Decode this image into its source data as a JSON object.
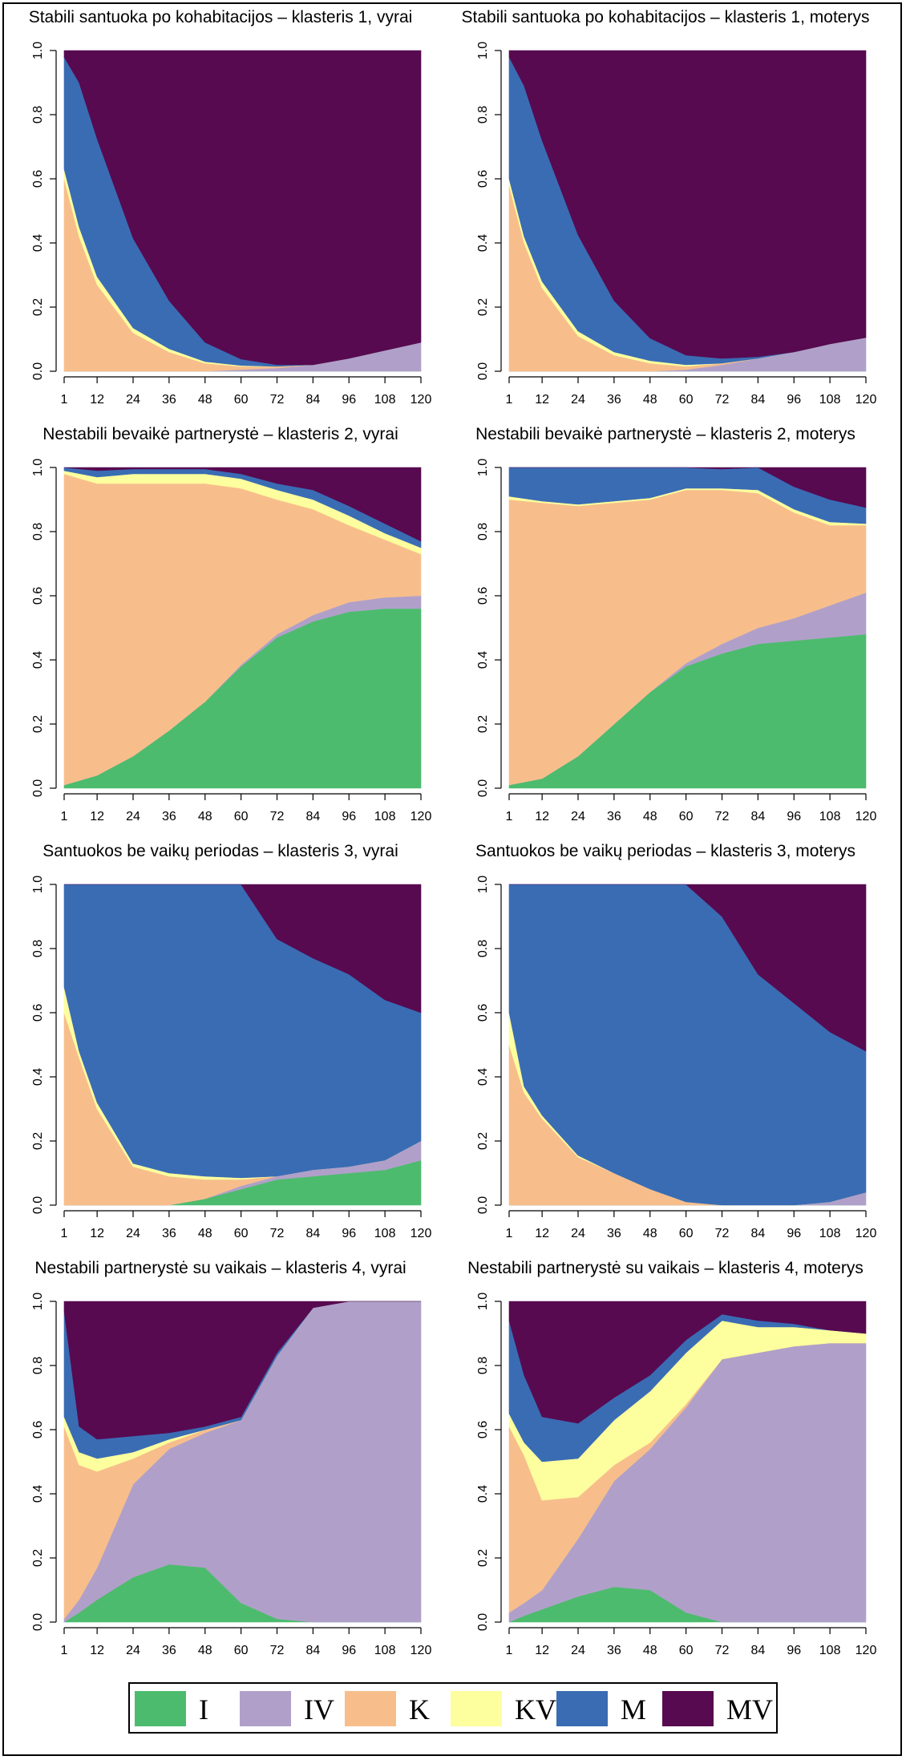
{
  "legend": [
    {
      "key": "I",
      "label": "I",
      "color": "#4dbb6e"
    },
    {
      "key": "IV",
      "label": "IV",
      "color": "#b0a0c9"
    },
    {
      "key": "K",
      "label": "K",
      "color": "#f7be8c"
    },
    {
      "key": "KV",
      "label": "KV",
      "color": "#fdfe9e"
    },
    {
      "key": "M",
      "label": "M",
      "color": "#3a6cb4"
    },
    {
      "key": "MV",
      "label": "MV",
      "color": "#570a50"
    }
  ],
  "chart_data": [
    {
      "type": "area",
      "title": "Stabili santuoka po kohabitacijos – klasteris 1, vyrai",
      "x": [
        1,
        6,
        12,
        24,
        36,
        48,
        60,
        72,
        84,
        96,
        108,
        120
      ],
      "xticks": [
        "1",
        "12",
        "24",
        "36",
        "48",
        "60",
        "72",
        "84",
        "96",
        "108",
        "120"
      ],
      "yticks": [
        "0.0",
        "0.2",
        "0.4",
        "0.6",
        "0.8",
        "1.0"
      ],
      "ylim": [
        0,
        1
      ],
      "stacked": true,
      "series": [
        {
          "name": "I",
          "values": [
            0,
            0,
            0,
            0,
            0,
            0,
            0,
            0,
            0,
            0,
            0,
            0
          ]
        },
        {
          "name": "IV",
          "values": [
            0,
            0,
            0,
            0,
            0,
            0,
            0.005,
            0.01,
            0.02,
            0.04,
            0.065,
            0.09
          ]
        },
        {
          "name": "K",
          "values": [
            0.6,
            0.42,
            0.27,
            0.12,
            0.06,
            0.025,
            0.01,
            0.005,
            0,
            0,
            0,
            0
          ]
        },
        {
          "name": "KV",
          "values": [
            0.03,
            0.03,
            0.025,
            0.015,
            0.01,
            0.005,
            0.003,
            0,
            0,
            0,
            0,
            0
          ]
        },
        {
          "name": "M",
          "values": [
            0.35,
            0.45,
            0.43,
            0.28,
            0.15,
            0.06,
            0.02,
            0.005,
            0,
            0,
            0,
            0
          ]
        },
        {
          "name": "MV",
          "values": [
            0.02,
            0.1,
            0.275,
            0.585,
            0.78,
            0.91,
            0.962,
            0.98,
            0.98,
            0.96,
            0.935,
            0.91
          ]
        }
      ]
    },
    {
      "type": "area",
      "title": "Stabili santuoka po kohabitacijos – klasteris 1, moterys",
      "x": [
        1,
        6,
        12,
        24,
        36,
        48,
        60,
        72,
        84,
        96,
        108,
        120
      ],
      "xticks": [
        "1",
        "12",
        "24",
        "36",
        "48",
        "60",
        "72",
        "84",
        "96",
        "108",
        "120"
      ],
      "yticks": [
        "0.0",
        "0.2",
        "0.4",
        "0.6",
        "0.8",
        "1.0"
      ],
      "ylim": [
        0,
        1
      ],
      "stacked": true,
      "series": [
        {
          "name": "I",
          "values": [
            0,
            0,
            0,
            0,
            0,
            0,
            0,
            0,
            0,
            0,
            0,
            0
          ]
        },
        {
          "name": "IV",
          "values": [
            0,
            0,
            0,
            0,
            0,
            0,
            0.005,
            0.02,
            0.04,
            0.06,
            0.085,
            0.105
          ]
        },
        {
          "name": "K",
          "values": [
            0.58,
            0.4,
            0.26,
            0.11,
            0.05,
            0.025,
            0.01,
            0.005,
            0,
            0,
            0,
            0
          ]
        },
        {
          "name": "KV",
          "values": [
            0.02,
            0.02,
            0.02,
            0.015,
            0.01,
            0.008,
            0.005,
            0,
            0,
            0,
            0,
            0
          ]
        },
        {
          "name": "M",
          "values": [
            0.38,
            0.47,
            0.44,
            0.3,
            0.16,
            0.07,
            0.03,
            0.015,
            0.005,
            0,
            0,
            0
          ]
        },
        {
          "name": "MV",
          "values": [
            0.02,
            0.11,
            0.28,
            0.575,
            0.78,
            0.897,
            0.95,
            0.96,
            0.955,
            0.94,
            0.915,
            0.895
          ]
        }
      ]
    },
    {
      "type": "area",
      "title": "Nestabili bevaikė partnerystė – klasteris 2, vyrai",
      "x": [
        1,
        12,
        24,
        36,
        48,
        60,
        72,
        84,
        96,
        108,
        120
      ],
      "xticks": [
        "1",
        "12",
        "24",
        "36",
        "48",
        "60",
        "72",
        "84",
        "96",
        "108",
        "120"
      ],
      "yticks": [
        "0.0",
        "0.2",
        "0.4",
        "0.6",
        "0.8",
        "1.0"
      ],
      "ylim": [
        0,
        1
      ],
      "stacked": true,
      "series": [
        {
          "name": "I",
          "values": [
            0.01,
            0.04,
            0.1,
            0.18,
            0.27,
            0.38,
            0.47,
            0.52,
            0.55,
            0.56,
            0.56
          ]
        },
        {
          "name": "IV",
          "values": [
            0,
            0,
            0,
            0,
            0,
            0.005,
            0.01,
            0.02,
            0.03,
            0.035,
            0.04
          ]
        },
        {
          "name": "K",
          "values": [
            0.97,
            0.91,
            0.85,
            0.77,
            0.68,
            0.55,
            0.42,
            0.33,
            0.24,
            0.18,
            0.13
          ]
        },
        {
          "name": "KV",
          "values": [
            0.01,
            0.02,
            0.03,
            0.03,
            0.03,
            0.03,
            0.03,
            0.03,
            0.03,
            0.02,
            0.02
          ]
        },
        {
          "name": "M",
          "values": [
            0.01,
            0.02,
            0.015,
            0.015,
            0.015,
            0.015,
            0.02,
            0.03,
            0.03,
            0.03,
            0.02
          ]
        },
        {
          "name": "MV",
          "values": [
            0,
            0.01,
            0.005,
            0.005,
            0.005,
            0.02,
            0.05,
            0.07,
            0.12,
            0.175,
            0.23
          ]
        }
      ]
    },
    {
      "type": "area",
      "title": "Nestabili bevaikė partnerystė – klasteris 2, moterys",
      "x": [
        1,
        12,
        24,
        36,
        48,
        60,
        72,
        84,
        96,
        108,
        120
      ],
      "xticks": [
        "1",
        "12",
        "24",
        "36",
        "48",
        "60",
        "72",
        "84",
        "96",
        "108",
        "120"
      ],
      "yticks": [
        "0.0",
        "0.2",
        "0.4",
        "0.6",
        "0.8",
        "1.0"
      ],
      "ylim": [
        0,
        1
      ],
      "stacked": true,
      "series": [
        {
          "name": "I",
          "values": [
            0.01,
            0.03,
            0.1,
            0.2,
            0.3,
            0.38,
            0.42,
            0.45,
            0.46,
            0.47,
            0.48
          ]
        },
        {
          "name": "IV",
          "values": [
            0,
            0,
            0,
            0,
            0,
            0.01,
            0.03,
            0.05,
            0.07,
            0.1,
            0.13
          ]
        },
        {
          "name": "K",
          "values": [
            0.89,
            0.86,
            0.78,
            0.69,
            0.6,
            0.54,
            0.48,
            0.42,
            0.33,
            0.25,
            0.21
          ]
        },
        {
          "name": "KV",
          "values": [
            0.01,
            0.005,
            0.005,
            0.005,
            0.005,
            0.005,
            0.005,
            0.01,
            0.01,
            0.01,
            0.005
          ]
        },
        {
          "name": "M",
          "values": [
            0.09,
            0.105,
            0.115,
            0.105,
            0.095,
            0.065,
            0.06,
            0.07,
            0.07,
            0.07,
            0.05
          ]
        },
        {
          "name": "MV",
          "values": [
            0,
            0,
            0,
            0,
            0,
            0,
            0.005,
            0,
            0.06,
            0.1,
            0.125
          ]
        }
      ]
    },
    {
      "type": "area",
      "title": "Santuokos be vaikų periodas – klasteris 3, vyrai",
      "x": [
        1,
        6,
        12,
        24,
        36,
        48,
        60,
        72,
        84,
        96,
        108,
        120
      ],
      "xticks": [
        "1",
        "12",
        "24",
        "36",
        "48",
        "60",
        "72",
        "84",
        "96",
        "108",
        "120"
      ],
      "yticks": [
        "0.0",
        "0.2",
        "0.4",
        "0.6",
        "0.8",
        "1.0"
      ],
      "ylim": [
        0,
        1
      ],
      "stacked": true,
      "series": [
        {
          "name": "I",
          "values": [
            0,
            0,
            0,
            0,
            0,
            0.02,
            0.05,
            0.08,
            0.09,
            0.1,
            0.11,
            0.14
          ]
        },
        {
          "name": "IV",
          "values": [
            0,
            0,
            0,
            0,
            0,
            0,
            0.01,
            0.01,
            0.02,
            0.02,
            0.03,
            0.06
          ]
        },
        {
          "name": "K",
          "values": [
            0.6,
            0.46,
            0.3,
            0.12,
            0.09,
            0.06,
            0.02,
            0,
            0,
            0,
            0,
            0
          ]
        },
        {
          "name": "KV",
          "values": [
            0.08,
            0.02,
            0.02,
            0.01,
            0.01,
            0.01,
            0.005,
            0,
            0,
            0,
            0,
            0
          ]
        },
        {
          "name": "M",
          "values": [
            0.32,
            0.52,
            0.68,
            0.87,
            0.9,
            0.91,
            0.915,
            0.74,
            0.66,
            0.6,
            0.5,
            0.4
          ]
        },
        {
          "name": "MV",
          "values": [
            0,
            0,
            0,
            0,
            0,
            0,
            0,
            0.17,
            0.23,
            0.28,
            0.36,
            0.4
          ]
        }
      ]
    },
    {
      "type": "area",
      "title": "Santuokos be vaikų periodas – klasteris 3, moterys",
      "x": [
        1,
        6,
        12,
        24,
        36,
        48,
        60,
        72,
        84,
        96,
        108,
        120
      ],
      "xticks": [
        "1",
        "12",
        "24",
        "36",
        "48",
        "60",
        "72",
        "84",
        "96",
        "108",
        "120"
      ],
      "yticks": [
        "0.0",
        "0.2",
        "0.4",
        "0.6",
        "0.8",
        "1.0"
      ],
      "ylim": [
        0,
        1
      ],
      "stacked": true,
      "series": [
        {
          "name": "I",
          "values": [
            0,
            0,
            0,
            0,
            0,
            0,
            0,
            0,
            0,
            0,
            0,
            0
          ]
        },
        {
          "name": "IV",
          "values": [
            0,
            0,
            0,
            0,
            0,
            0,
            0,
            0,
            0,
            0,
            0.01,
            0.04
          ]
        },
        {
          "name": "K",
          "values": [
            0.5,
            0.35,
            0.27,
            0.15,
            0.1,
            0.05,
            0.01,
            0,
            0,
            0,
            0,
            0
          ]
        },
        {
          "name": "KV",
          "values": [
            0.1,
            0.02,
            0.01,
            0.005,
            0,
            0,
            0,
            0,
            0,
            0,
            0,
            0
          ]
        },
        {
          "name": "M",
          "values": [
            0.4,
            0.63,
            0.72,
            0.845,
            0.9,
            0.95,
            0.99,
            0.9,
            0.72,
            0.63,
            0.53,
            0.44
          ]
        },
        {
          "name": "MV",
          "values": [
            0,
            0,
            0,
            0,
            0,
            0,
            0,
            0.1,
            0.28,
            0.37,
            0.46,
            0.52
          ]
        }
      ]
    },
    {
      "type": "area",
      "title": "Nestabili partnerystė su vaikais – klasteris 4, vyrai",
      "x": [
        1,
        6,
        12,
        24,
        36,
        48,
        60,
        72,
        84,
        96,
        108,
        120
      ],
      "xticks": [
        "1",
        "12",
        "24",
        "36",
        "48",
        "60",
        "72",
        "84",
        "96",
        "108",
        "120"
      ],
      "yticks": [
        "0.0",
        "0.2",
        "0.4",
        "0.6",
        "0.8",
        "1.0"
      ],
      "ylim": [
        0,
        1
      ],
      "stacked": true,
      "series": [
        {
          "name": "I",
          "values": [
            0,
            0.03,
            0.07,
            0.14,
            0.18,
            0.17,
            0.06,
            0.01,
            0,
            0,
            0,
            0
          ]
        },
        {
          "name": "IV",
          "values": [
            0.01,
            0.04,
            0.1,
            0.29,
            0.36,
            0.42,
            0.57,
            0.82,
            0.98,
            1,
            1,
            1
          ]
        },
        {
          "name": "K",
          "values": [
            0.6,
            0.42,
            0.3,
            0.08,
            0.02,
            0.01,
            0,
            0,
            0,
            0,
            0,
            0
          ]
        },
        {
          "name": "KV",
          "values": [
            0.03,
            0.04,
            0.04,
            0.02,
            0.01,
            0,
            0,
            0,
            0,
            0,
            0,
            0
          ]
        },
        {
          "name": "M",
          "values": [
            0.33,
            0.08,
            0.06,
            0.05,
            0.02,
            0.01,
            0.01,
            0.01,
            0,
            0,
            0,
            0
          ]
        },
        {
          "name": "MV",
          "values": [
            0.03,
            0.39,
            0.43,
            0.42,
            0.41,
            0.39,
            0.36,
            0.16,
            0.02,
            0,
            0,
            0
          ]
        }
      ]
    },
    {
      "type": "area",
      "title": "Nestabili partnerystė su vaikais – klasteris 4, moterys",
      "x": [
        1,
        6,
        12,
        24,
        36,
        48,
        60,
        72,
        84,
        96,
        108,
        120
      ],
      "xticks": [
        "1",
        "12",
        "24",
        "36",
        "48",
        "60",
        "72",
        "84",
        "96",
        "108",
        "120"
      ],
      "yticks": [
        "0.0",
        "0.2",
        "0.4",
        "0.6",
        "0.8",
        "1.0"
      ],
      "ylim": [
        0,
        1
      ],
      "stacked": true,
      "series": [
        {
          "name": "I",
          "values": [
            0,
            0.02,
            0.04,
            0.08,
            0.11,
            0.1,
            0.03,
            0,
            0,
            0,
            0,
            0
          ]
        },
        {
          "name": "IV",
          "values": [
            0.03,
            0.04,
            0.06,
            0.18,
            0.33,
            0.44,
            0.64,
            0.82,
            0.84,
            0.86,
            0.87,
            0.87
          ]
        },
        {
          "name": "K",
          "values": [
            0.58,
            0.46,
            0.28,
            0.13,
            0.05,
            0.02,
            0.01,
            0,
            0,
            0,
            0,
            0
          ]
        },
        {
          "name": "KV",
          "values": [
            0.04,
            0.04,
            0.12,
            0.12,
            0.14,
            0.16,
            0.16,
            0.12,
            0.08,
            0.06,
            0.04,
            0.03
          ]
        },
        {
          "name": "M",
          "values": [
            0.29,
            0.21,
            0.14,
            0.11,
            0.07,
            0.05,
            0.04,
            0.02,
            0.02,
            0.01,
            0,
            0
          ]
        },
        {
          "name": "MV",
          "values": [
            0.06,
            0.23,
            0.36,
            0.38,
            0.3,
            0.23,
            0.12,
            0.04,
            0.06,
            0.07,
            0.09,
            0.1
          ]
        }
      ]
    }
  ]
}
